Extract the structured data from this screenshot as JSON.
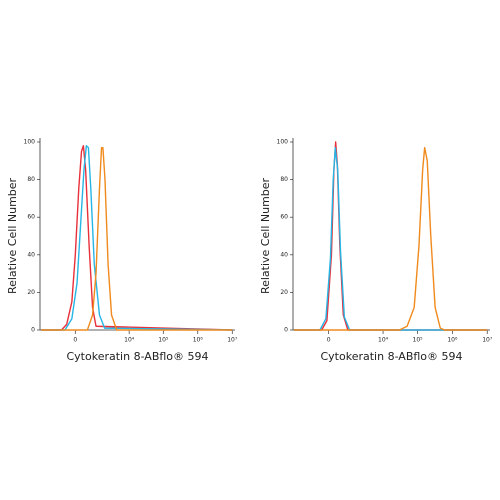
{
  "chart_data": [
    {
      "type": "line",
      "xscale": "symlog",
      "linthresh": 283,
      "xlabel": "Cytokeratin 8-ABflo® 594",
      "ylabel": "Relative Cell Number",
      "xlim": [
        -2700,
        12000000
      ],
      "ylim": [
        0,
        100
      ],
      "xticks": [
        0,
        {
          "value": 10000,
          "label": "10⁴"
        },
        {
          "value": 100000,
          "label": "10⁵"
        },
        {
          "value": 1000000,
          "label": "10⁶"
        },
        {
          "value": 10000000,
          "label": "10⁷"
        }
      ],
      "yticks": [
        0,
        20,
        40,
        60,
        80,
        100
      ],
      "series": [
        {
          "color": "#e8303a",
          "x": [
            -2500,
            -428,
            -220,
            -73,
            0,
            73,
            145,
            203,
            282,
            428,
            612,
            844,
            10000000
          ],
          "values": [
            0,
            0,
            3,
            15,
            40,
            75,
            95,
            98,
            85,
            45,
            12,
            2,
            0
          ]
        },
        {
          "color": "#27b5e5",
          "x": [
            -2500,
            -282,
            -73,
            35,
            117,
            220,
            308,
            396,
            514,
            721,
            1135,
            1720,
            10000000
          ],
          "values": [
            0,
            0,
            6,
            25,
            55,
            85,
            98,
            97,
            75,
            35,
            8,
            1,
            0
          ]
        },
        {
          "color": "#f08a1c",
          "x": [
            -2500,
            351,
            612,
            844,
            1135,
            1345,
            1503,
            1767,
            2239,
            2892,
            4202,
            10000000
          ],
          "values": [
            0,
            0,
            8,
            30,
            75,
            97,
            97,
            80,
            35,
            8,
            0,
            0
          ]
        }
      ]
    },
    {
      "type": "line",
      "xscale": "symlog",
      "linthresh": 283,
      "xlabel": "Cytokeratin 8-ABflo® 594",
      "ylabel": "Relative Cell Number",
      "xlim": [
        -2700,
        12000000
      ],
      "ylim": [
        0,
        100
      ],
      "xticks": [
        0,
        {
          "value": 10000,
          "label": "10⁴"
        },
        {
          "value": 100000,
          "label": "10⁵"
        },
        {
          "value": 1000000,
          "label": "10⁶"
        },
        {
          "value": 10000000,
          "label": "10⁷"
        }
      ],
      "yticks": [
        0,
        20,
        40,
        60,
        80,
        100
      ],
      "series": [
        {
          "color": "#e8303a",
          "x": [
            -2500,
            -166,
            -35,
            57,
            117,
            166,
            220,
            308,
            461,
            721,
            10000000
          ],
          "values": [
            0,
            0,
            5,
            40,
            85,
            100,
            88,
            45,
            8,
            0,
            0
          ]
        },
        {
          "color": "#27b5e5",
          "x": [
            -2500,
            -220,
            -57,
            35,
            99,
            155,
            232,
            336,
            514,
            844,
            10000000
          ],
          "values": [
            0,
            0,
            6,
            38,
            80,
            97,
            85,
            42,
            7,
            0,
            0
          ]
        },
        {
          "color": "#f08a1c",
          "x": [
            -2500,
            30000,
            50000,
            80000,
            110000,
            140000,
            160000,
            190000,
            240000,
            320000,
            450000,
            600000,
            10000000
          ],
          "values": [
            0,
            0,
            2,
            12,
            45,
            85,
            97,
            90,
            50,
            12,
            1,
            0,
            0
          ]
        }
      ]
    }
  ]
}
